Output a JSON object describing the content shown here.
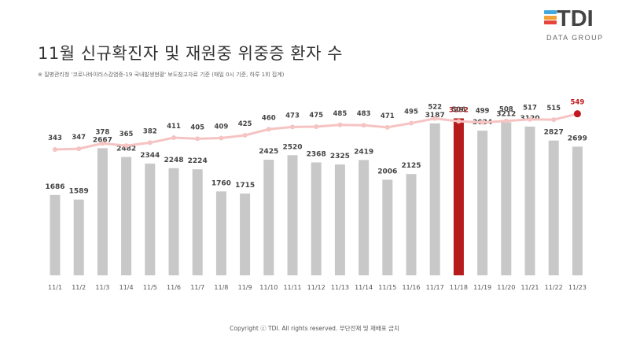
{
  "title": "11월 신규확진자 및 재원중 위중증 환자 수",
  "note": "※ 질병관리청 '코로나바이러스감염증-19 국내발생현황' 보도참고자료 기준 (매일 0시 기준, 하루 1회 집계)",
  "footer": "Copyright ⓒ TDI. All rights reserved. 무단전재 및 재배포 금지",
  "logo": {
    "name": "TDI",
    "sub": "DATA GROUP",
    "mark_colors": [
      "#3FA9E0",
      "#F2A134",
      "#E5453A"
    ]
  },
  "colors": {
    "bar": "#C8C8C8",
    "bar_highlight": "#B71C1C",
    "line": "#F6C3C3",
    "line_highlight": "#C0181E",
    "label": "#444444"
  },
  "chart_data": {
    "type": "bar",
    "categories": [
      "11/1",
      "11/2",
      "11/3",
      "11/4",
      "11/5",
      "11/6",
      "11/7",
      "11/8",
      "11/9",
      "11/10",
      "11/11",
      "11/12",
      "11/13",
      "11/14",
      "11/15",
      "11/16",
      "11/17",
      "11/18",
      "11/19",
      "11/20",
      "11/21",
      "11/22",
      "11/23"
    ],
    "series": [
      {
        "type": "bar",
        "values": [
          1686,
          1589,
          2667,
          2482,
          2344,
          2248,
          2224,
          1760,
          1715,
          2425,
          2520,
          2368,
          2325,
          2419,
          2006,
          2125,
          3187,
          3292,
          3034,
          3212,
          3120,
          2827,
          2699
        ],
        "highlight_index": 17
      },
      {
        "type": "line",
        "values": [
          343,
          347,
          378,
          365,
          382,
          411,
          405,
          409,
          425,
          460,
          473,
          475,
          485,
          483,
          471,
          495,
          522,
          506,
          499,
          508,
          517,
          515,
          549
        ],
        "highlight_index": 22
      }
    ],
    "ylim_bars": [
      0,
      3300
    ],
    "ylim_line": [
      -1600,
      650
    ],
    "grid": false,
    "legend": "none"
  }
}
